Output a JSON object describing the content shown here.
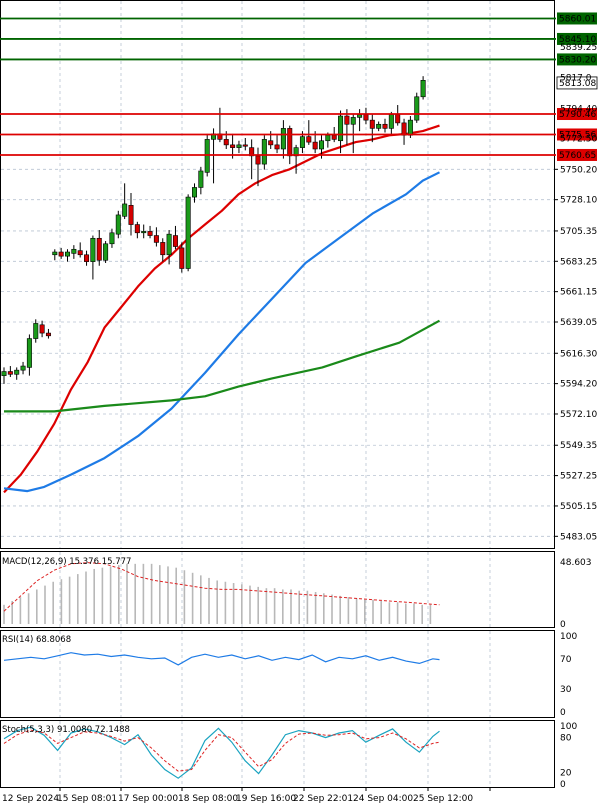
{
  "chart_data": {
    "type": "candlestick",
    "price_axis": {
      "ticks": [
        5483.05,
        5505.15,
        5527.25,
        5549.35,
        5572.1,
        5594.2,
        5616.3,
        5639.05,
        5661.15,
        5683.25,
        5705.35,
        5728.1,
        5750.2
      ],
      "range": [
        5476,
        5872
      ]
    },
    "x_labels": [
      "12 Sep 2024",
      "15 Sep 08:01",
      "17 Sep 00:00",
      "18 Sep 08:00",
      "19 Sep 16:00",
      "22 Sep 22:01",
      "24 Sep 04:00",
      "25 Sep 12:00"
    ],
    "current_price": "5813.08",
    "partial_labels": [
      "5817.0",
      "5794.40",
      "5772.50"
    ],
    "levels": [
      {
        "value": 5860.01,
        "label": "5860.01",
        "color": "#006400"
      },
      {
        "value": 5845.1,
        "label": "5845.10",
        "color": "#006400"
      },
      {
        "value": 5830.2,
        "label": "5830.20",
        "color": "#006400"
      },
      {
        "value": 5790.46,
        "label": "5790.46",
        "color": "#dd0000"
      },
      {
        "value": 5775.56,
        "label": "5775.56",
        "color": "#dd0000"
      },
      {
        "value": 5760.65,
        "label": "5760.65",
        "color": "#dd0000"
      }
    ],
    "levels_extra_tick": "5839.25",
    "candles": [
      [
        5600,
        5606,
        5594,
        5603
      ],
      [
        5603,
        5607,
        5599,
        5601
      ],
      [
        5601,
        5606,
        5597,
        5604
      ],
      [
        5604,
        5610,
        5601,
        5607
      ],
      [
        5606,
        5630,
        5600,
        5627
      ],
      [
        5627,
        5641,
        5624,
        5638
      ],
      [
        5637,
        5640,
        5628,
        5631
      ],
      [
        5631,
        5634,
        5627,
        5629
      ],
      [
        5688,
        5692,
        5684,
        5690
      ],
      [
        5690,
        5693,
        5685,
        5687
      ],
      [
        5687,
        5692,
        5683,
        5690
      ],
      [
        5689,
        5695,
        5685,
        5692
      ],
      [
        5691,
        5697,
        5686,
        5688
      ],
      [
        5688,
        5691,
        5680,
        5683
      ],
      [
        5683,
        5702,
        5670,
        5700
      ],
      [
        5700,
        5706,
        5680,
        5684
      ],
      [
        5684,
        5698,
        5682,
        5696
      ],
      [
        5696,
        5707,
        5693,
        5704
      ],
      [
        5703,
        5720,
        5700,
        5717
      ],
      [
        5716,
        5740,
        5714,
        5725
      ],
      [
        5724,
        5733,
        5702,
        5710
      ],
      [
        5710,
        5712,
        5700,
        5704
      ],
      [
        5704,
        5710,
        5700,
        5705
      ],
      [
        5705,
        5709,
        5700,
        5702
      ],
      [
        5702,
        5708,
        5694,
        5697
      ],
      [
        5697,
        5700,
        5683,
        5688
      ],
      [
        5688,
        5706,
        5681,
        5703
      ],
      [
        5702,
        5709,
        5692,
        5694
      ],
      [
        5693,
        5697,
        5675,
        5678
      ],
      [
        5678,
        5732,
        5676,
        5730
      ],
      [
        5730,
        5740,
        5726,
        5737
      ],
      [
        5737,
        5752,
        5732,
        5749
      ],
      [
        5748,
        5776,
        5745,
        5772
      ],
      [
        5772,
        5780,
        5740,
        5776
      ],
      [
        5776,
        5795,
        5770,
        5772
      ],
      [
        5772,
        5778,
        5765,
        5768
      ],
      [
        5768,
        5776,
        5758,
        5766
      ],
      [
        5766,
        5771,
        5762,
        5768
      ],
      [
        5768,
        5773,
        5764,
        5767
      ],
      [
        5766,
        5772,
        5743,
        5760
      ],
      [
        5760,
        5766,
        5738,
        5754
      ],
      [
        5754,
        5775,
        5750,
        5772
      ],
      [
        5771,
        5778,
        5765,
        5768
      ],
      [
        5768,
        5775,
        5762,
        5765
      ],
      [
        5765,
        5786,
        5758,
        5780
      ],
      [
        5780,
        5782,
        5754,
        5760
      ],
      [
        5760,
        5768,
        5747,
        5766
      ],
      [
        5766,
        5778,
        5762,
        5774
      ],
      [
        5774,
        5786,
        5768,
        5770
      ],
      [
        5770,
        5778,
        5762,
        5765
      ],
      [
        5765,
        5775,
        5758,
        5771
      ],
      [
        5771,
        5777,
        5766,
        5775
      ],
      [
        5775,
        5781,
        5770,
        5772
      ],
      [
        5771,
        5793,
        5762,
        5789
      ],
      [
        5789,
        5794,
        5768,
        5783
      ],
      [
        5783,
        5790,
        5762,
        5788
      ],
      [
        5788,
        5794,
        5778,
        5790
      ],
      [
        5790,
        5795,
        5783,
        5786
      ],
      [
        5786,
        5790,
        5770,
        5780
      ],
      [
        5780,
        5785,
        5778,
        5783
      ],
      [
        5783,
        5787,
        5777,
        5780
      ],
      [
        5780,
        5792,
        5775,
        5790
      ],
      [
        5790,
        5797,
        5782,
        5784
      ],
      [
        5784,
        5787,
        5768,
        5775
      ],
      [
        5775,
        5789,
        5773,
        5786
      ],
      [
        5786,
        5806,
        5784,
        5803
      ],
      [
        5803,
        5818,
        5801,
        5815
      ]
    ],
    "moving_averages": [
      {
        "color": "#dd0000",
        "points": [
          [
            0,
            5515
          ],
          [
            5,
            5528
          ],
          [
            10,
            5545
          ],
          [
            15,
            5565
          ],
          [
            20,
            5590
          ],
          [
            25,
            5610
          ],
          [
            30,
            5635
          ],
          [
            35,
            5650
          ],
          [
            40,
            5665
          ],
          [
            45,
            5678
          ],
          [
            50,
            5688
          ],
          [
            55,
            5700
          ],
          [
            60,
            5710
          ],
          [
            65,
            5720
          ],
          [
            70,
            5732
          ],
          [
            75,
            5740
          ],
          [
            80,
            5746
          ],
          [
            85,
            5750
          ],
          [
            90,
            5756
          ],
          [
            95,
            5762
          ],
          [
            100,
            5766
          ],
          [
            105,
            5770
          ],
          [
            110,
            5772
          ],
          [
            115,
            5775
          ],
          [
            120,
            5776
          ],
          [
            125,
            5778
          ],
          [
            130,
            5782
          ]
        ]
      },
      {
        "color": "#1e7be6",
        "points": [
          [
            0,
            5518
          ],
          [
            7,
            5516
          ],
          [
            12,
            5519
          ],
          [
            20,
            5528
          ],
          [
            30,
            5540
          ],
          [
            40,
            5556
          ],
          [
            50,
            5576
          ],
          [
            60,
            5602
          ],
          [
            70,
            5630
          ],
          [
            80,
            5656
          ],
          [
            90,
            5682
          ],
          [
            100,
            5700
          ],
          [
            110,
            5718
          ],
          [
            120,
            5732
          ],
          [
            125,
            5742
          ],
          [
            130,
            5748
          ]
        ]
      },
      {
        "color": "#1a8a1a",
        "points": [
          [
            0,
            5574
          ],
          [
            15,
            5574
          ],
          [
            30,
            5578
          ],
          [
            50,
            5582
          ],
          [
            60,
            5585
          ],
          [
            70,
            5592
          ],
          [
            80,
            5598
          ],
          [
            95,
            5606
          ],
          [
            105,
            5614
          ],
          [
            118,
            5624
          ],
          [
            124,
            5632
          ],
          [
            130,
            5640
          ]
        ]
      }
    ],
    "macd": {
      "label": "MACD(12,26,9) 15.376 15.777",
      "ticks": [
        "48.603",
        "0"
      ],
      "range": [
        0,
        50
      ],
      "hist": [
        15,
        18,
        21,
        24,
        27,
        30,
        33,
        35,
        37,
        39,
        41,
        43,
        44,
        45,
        46,
        47,
        47,
        47,
        47,
        46,
        45,
        44,
        42,
        40,
        38,
        36,
        34,
        33,
        32,
        31,
        30,
        29,
        28,
        28,
        27,
        27,
        26,
        26,
        25,
        24,
        23,
        22,
        21,
        20,
        19,
        19,
        18,
        17,
        17,
        16,
        16,
        15,
        15
      ],
      "signal": [
        [
          0,
          10
        ],
        [
          5,
          22
        ],
        [
          10,
          34
        ],
        [
          15,
          42
        ],
        [
          20,
          47
        ],
        [
          25,
          48
        ],
        [
          30,
          47
        ],
        [
          35,
          43
        ],
        [
          40,
          37
        ],
        [
          45,
          34
        ],
        [
          50,
          32
        ],
        [
          55,
          30
        ],
        [
          60,
          28
        ],
        [
          65,
          27
        ],
        [
          70,
          27
        ],
        [
          75,
          26
        ],
        [
          80,
          25
        ],
        [
          85,
          24
        ],
        [
          90,
          23
        ],
        [
          95,
          22
        ],
        [
          100,
          21
        ],
        [
          105,
          20
        ],
        [
          110,
          19
        ],
        [
          115,
          18
        ],
        [
          120,
          17
        ],
        [
          125,
          16
        ],
        [
          130,
          15
        ]
      ]
    },
    "rsi": {
      "label": "RSI(14) 68.8068",
      "ticks": [
        "100",
        "70",
        "30",
        "0"
      ],
      "range": [
        0,
        100
      ],
      "line": [
        [
          0,
          68
        ],
        [
          4,
          70
        ],
        [
          8,
          72
        ],
        [
          12,
          70
        ],
        [
          16,
          74
        ],
        [
          20,
          78
        ],
        [
          24,
          75
        ],
        [
          28,
          76
        ],
        [
          32,
          73
        ],
        [
          36,
          75
        ],
        [
          40,
          72
        ],
        [
          44,
          70
        ],
        [
          48,
          71
        ],
        [
          52,
          62
        ],
        [
          56,
          72
        ],
        [
          60,
          76
        ],
        [
          64,
          72
        ],
        [
          68,
          75
        ],
        [
          72,
          70
        ],
        [
          76,
          74
        ],
        [
          80,
          68
        ],
        [
          84,
          72
        ],
        [
          88,
          69
        ],
        [
          92,
          75
        ],
        [
          96,
          66
        ],
        [
          100,
          72
        ],
        [
          104,
          70
        ],
        [
          108,
          74
        ],
        [
          112,
          68
        ],
        [
          116,
          72
        ],
        [
          120,
          67
        ],
        [
          124,
          64
        ],
        [
          128,
          70
        ],
        [
          130,
          69
        ]
      ]
    },
    "stoch": {
      "label": "Stoch(5,3,3) 91.0080 72.1488",
      "ticks": [
        "100",
        "80",
        "20",
        "0"
      ],
      "range": [
        0,
        100
      ],
      "k": [
        [
          0,
          78
        ],
        [
          4,
          92
        ],
        [
          8,
          98
        ],
        [
          12,
          84
        ],
        [
          16,
          58
        ],
        [
          20,
          88
        ],
        [
          24,
          95
        ],
        [
          28,
          90
        ],
        [
          32,
          80
        ],
        [
          36,
          68
        ],
        [
          40,
          85
        ],
        [
          44,
          50
        ],
        [
          48,
          25
        ],
        [
          52,
          10
        ],
        [
          56,
          28
        ],
        [
          60,
          75
        ],
        [
          64,
          96
        ],
        [
          68,
          72
        ],
        [
          72,
          40
        ],
        [
          76,
          18
        ],
        [
          80,
          50
        ],
        [
          84,
          85
        ],
        [
          88,
          92
        ],
        [
          92,
          88
        ],
        [
          96,
          80
        ],
        [
          100,
          88
        ],
        [
          104,
          92
        ],
        [
          108,
          72
        ],
        [
          112,
          84
        ],
        [
          116,
          95
        ],
        [
          120,
          72
        ],
        [
          124,
          55
        ],
        [
          128,
          82
        ],
        [
          130,
          91
        ]
      ],
      "d": [
        [
          0,
          70
        ],
        [
          4,
          85
        ],
        [
          8,
          93
        ],
        [
          12,
          88
        ],
        [
          16,
          70
        ],
        [
          20,
          80
        ],
        [
          24,
          90
        ],
        [
          28,
          88
        ],
        [
          32,
          82
        ],
        [
          36,
          74
        ],
        [
          40,
          80
        ],
        [
          44,
          62
        ],
        [
          48,
          40
        ],
        [
          52,
          22
        ],
        [
          56,
          25
        ],
        [
          60,
          58
        ],
        [
          64,
          85
        ],
        [
          68,
          80
        ],
        [
          72,
          55
        ],
        [
          76,
          30
        ],
        [
          80,
          42
        ],
        [
          84,
          70
        ],
        [
          88,
          86
        ],
        [
          92,
          88
        ],
        [
          96,
          84
        ],
        [
          100,
          85
        ],
        [
          104,
          88
        ],
        [
          108,
          78
        ],
        [
          112,
          80
        ],
        [
          116,
          88
        ],
        [
          120,
          78
        ],
        [
          124,
          62
        ],
        [
          128,
          70
        ],
        [
          130,
          72
        ]
      ]
    }
  }
}
